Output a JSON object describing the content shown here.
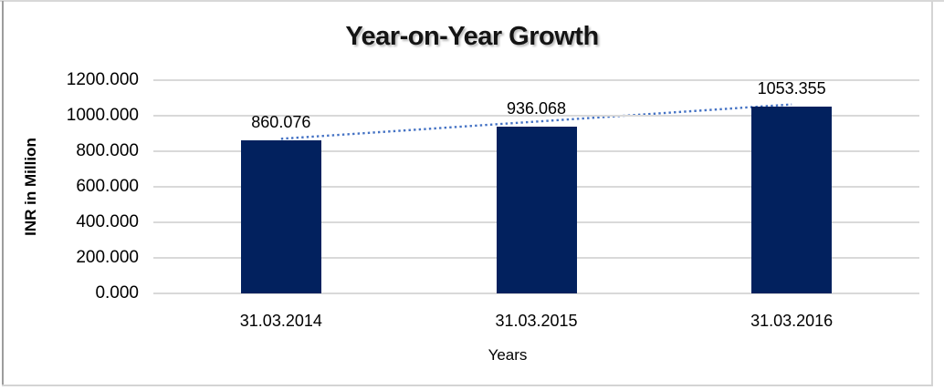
{
  "chart_data": {
    "type": "bar",
    "title": "Year-on-Year Growth",
    "categories": [
      "31.03.2014",
      "31.03.2015",
      "31.03.2016"
    ],
    "series": [
      {
        "name": "INR in Million",
        "values": [
          860.076,
          936.068,
          1053.355
        ]
      }
    ],
    "data_labels": [
      "860.076",
      "936.068",
      "1053.355"
    ],
    "xlabel": "Years",
    "ylabel": "INR in Million",
    "ylim": [
      0,
      1200
    ],
    "yticks": [
      "0.000",
      "200.000",
      "400.000",
      "600.000",
      "800.000",
      "1000.000",
      "1200.000"
    ],
    "grid": true,
    "legend": "none",
    "bar_color": "#02215E",
    "gridline_color": "#D9D9D9",
    "trendline": {
      "type": "linear",
      "style": "dotted",
      "color": "#4472C4"
    }
  }
}
